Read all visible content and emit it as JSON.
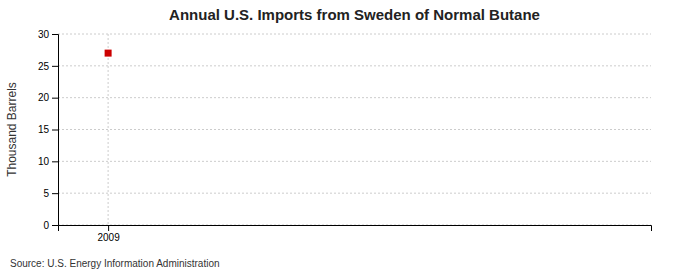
{
  "chart_data": {
    "type": "scatter",
    "title": "Annual U.S. Imports from Sweden of Normal Butane",
    "ylabel": "Thousand Barrels",
    "source": "Source: U.S. Energy Information Administration",
    "x": [
      2009
    ],
    "values": [
      27
    ],
    "color": "#cc0000",
    "marker": "square",
    "xlim": [
      2008.4,
      2015.5
    ],
    "xticks": [
      2009
    ],
    "ylim": [
      0,
      30
    ],
    "yticks": [
      0,
      5,
      10,
      15,
      20,
      25,
      30
    ],
    "grid": true
  }
}
